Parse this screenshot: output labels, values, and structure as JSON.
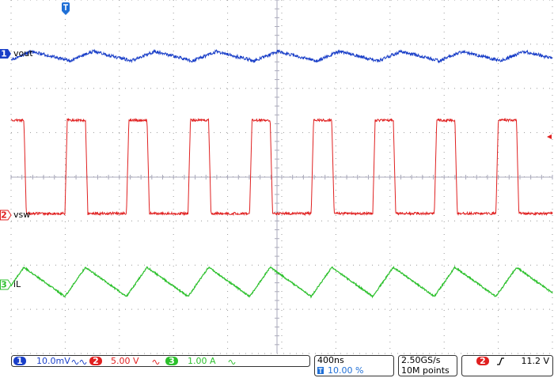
{
  "channels": [
    {
      "number": "1",
      "label": "vout",
      "scale": "10.0mV"
    },
    {
      "number": "2",
      "label": "vsw",
      "scale": "5.00 V"
    },
    {
      "number": "3",
      "label": "iL",
      "scale": "1.00 A"
    }
  ],
  "timebase": {
    "scale": "400ns",
    "trigger_position": "10.00 %"
  },
  "acquisition": {
    "sample_rate": "2.50GS/s",
    "record_length": "10M points"
  },
  "trigger": {
    "source": "2",
    "level": "11.2 V"
  }
}
